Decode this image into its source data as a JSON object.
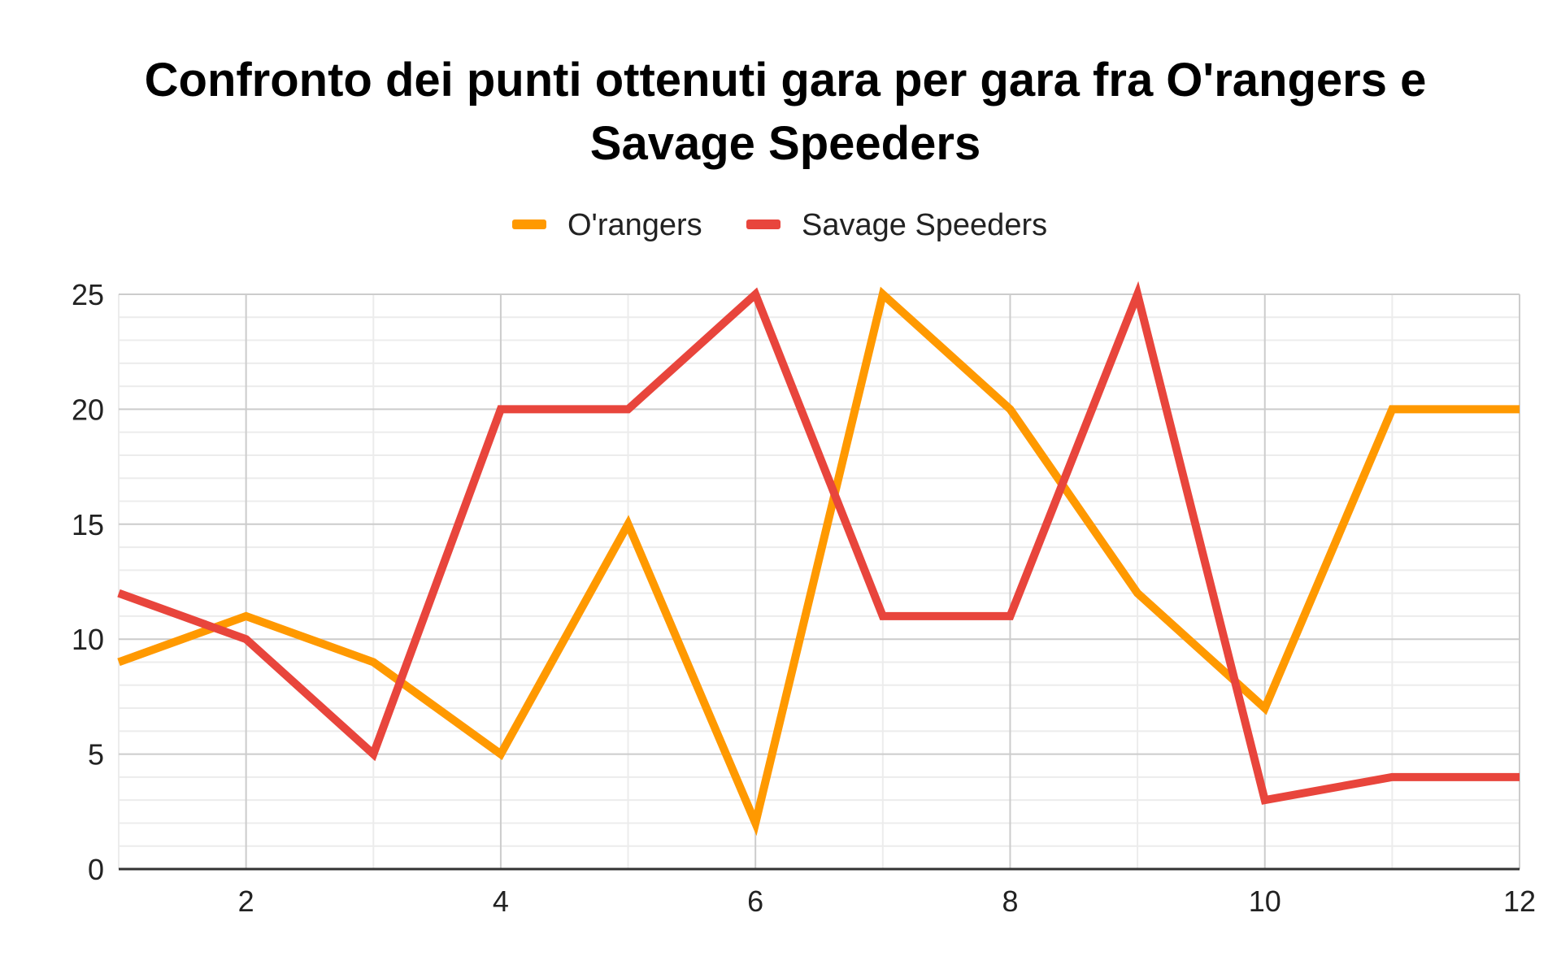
{
  "chart_data": {
    "type": "line",
    "title_lines": [
      "Confronto dei punti ottenuti gara per gara fra O'rangers e",
      "Savage Speeders"
    ],
    "xlabel": "",
    "ylabel": "",
    "x": [
      1,
      2,
      3,
      4,
      5,
      6,
      7,
      8,
      9,
      10,
      11,
      12
    ],
    "xlim": [
      1,
      12
    ],
    "ylim": [
      0,
      25
    ],
    "x_ticks": [
      2,
      4,
      6,
      8,
      10,
      12
    ],
    "y_ticks": [
      0,
      5,
      10,
      15,
      20,
      25
    ],
    "y_minor_step": 1,
    "grid": true,
    "legend_position": "top-center",
    "series": [
      {
        "name": "O'rangers",
        "color": "#ff9900",
        "values": [
          9,
          11,
          9,
          5,
          15,
          2,
          25,
          20,
          12,
          7,
          20,
          20
        ]
      },
      {
        "name": "Savage Speeders",
        "color": "#e8453c",
        "values": [
          12,
          10,
          5,
          20,
          20,
          25,
          11,
          11,
          25,
          3,
          4,
          4
        ]
      }
    ]
  }
}
